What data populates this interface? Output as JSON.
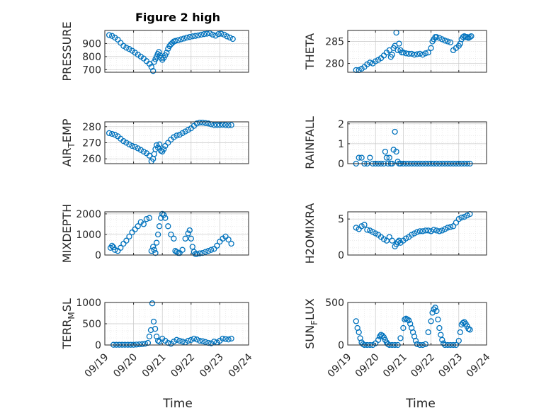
{
  "figure": {
    "title": "Figure 2 high",
    "xlabel": "Time",
    "xticks": [
      "09/19",
      "09/20",
      "09/21",
      "09/22",
      "09/23",
      "09/24"
    ],
    "marker_color": "#0072BD",
    "grid": "dotted minor and major"
  },
  "chart_data": [
    {
      "id": "pressure",
      "type": "scatter",
      "ylabel": "PRESSURE",
      "ylim": [
        680,
        1000
      ],
      "yticks": [
        700,
        800,
        900
      ],
      "xlim": [
        0,
        5
      ],
      "x": [
        0.15,
        0.25,
        0.35,
        0.45,
        0.55,
        0.65,
        0.75,
        0.85,
        0.95,
        1.05,
        1.15,
        1.25,
        1.35,
        1.45,
        1.55,
        1.62,
        1.68,
        1.72,
        1.76,
        1.8,
        1.84,
        1.88,
        1.92,
        1.96,
        2.0,
        2.05,
        2.1,
        2.15,
        2.2,
        2.25,
        2.3,
        2.35,
        2.4,
        2.45,
        2.55,
        2.65,
        2.75,
        2.85,
        2.95,
        3.05,
        3.15,
        3.25,
        3.35,
        3.45,
        3.55,
        3.65,
        3.75,
        3.85,
        3.95,
        4.05,
        4.15,
        4.25,
        4.35,
        4.45
      ],
      "y": [
        965,
        958,
        945,
        930,
        905,
        882,
        868,
        858,
        845,
        830,
        815,
        800,
        785,
        765,
        745,
        720,
        690,
        760,
        780,
        800,
        820,
        835,
        810,
        790,
        775,
        790,
        810,
        830,
        860,
        880,
        895,
        905,
        915,
        920,
        925,
        932,
        938,
        945,
        950,
        955,
        958,
        962,
        968,
        972,
        975,
        978,
        968,
        960,
        972,
        975,
        968,
        955,
        945,
        935
      ]
    },
    {
      "id": "theta",
      "type": "scatter",
      "ylabel": "THETA",
      "ylim": [
        278,
        287.5
      ],
      "yticks": [
        280,
        285
      ],
      "xlim": [
        0,
        5
      ],
      "x": [
        0.3,
        0.4,
        0.5,
        0.6,
        0.7,
        0.8,
        0.9,
        1.0,
        1.1,
        1.2,
        1.3,
        1.4,
        1.5,
        1.55,
        1.6,
        1.65,
        1.7,
        1.75,
        1.8,
        1.85,
        1.9,
        1.95,
        2.0,
        2.1,
        2.2,
        2.3,
        2.4,
        2.5,
        2.6,
        2.7,
        2.8,
        2.9,
        3.0,
        3.05,
        3.1,
        3.15,
        3.2,
        3.3,
        3.4,
        3.5,
        3.6,
        3.7,
        3.8,
        3.9,
        4.0,
        4.05,
        4.1,
        4.15,
        4.2,
        4.25,
        4.3,
        4.35,
        4.4,
        4.45
      ],
      "y": [
        278.5,
        278.5,
        278.8,
        279.2,
        279.8,
        280.2,
        280.0,
        280.5,
        280.8,
        281.2,
        281.8,
        282.5,
        283.0,
        281.5,
        282.0,
        283.5,
        284.0,
        287.0,
        283.0,
        284.5,
        283.0,
        282.5,
        282.5,
        282.3,
        282.2,
        282.2,
        282.0,
        282.1,
        282.2,
        282.0,
        282.3,
        282.5,
        283.5,
        285.0,
        285.5,
        286.0,
        286.0,
        285.8,
        285.5,
        285.2,
        285.0,
        284.8,
        283.0,
        283.5,
        284.0,
        284.5,
        285.5,
        286.0,
        286.2,
        286.0,
        286.0,
        285.8,
        286.0,
        286.2
      ]
    },
    {
      "id": "airtemp",
      "type": "scatter",
      "ylabel": "AIR",
      "ylabel_sub": "T",
      "ylabel_rest": "EMP",
      "ylim": [
        257,
        283
      ],
      "yticks": [
        260,
        270,
        280
      ],
      "xlim": [
        0,
        5
      ],
      "x": [
        0.15,
        0.25,
        0.35,
        0.45,
        0.55,
        0.65,
        0.75,
        0.85,
        0.95,
        1.05,
        1.15,
        1.25,
        1.35,
        1.45,
        1.55,
        1.62,
        1.68,
        1.72,
        1.76,
        1.8,
        1.85,
        1.9,
        1.95,
        2.0,
        2.05,
        2.1,
        2.2,
        2.3,
        2.4,
        2.5,
        2.6,
        2.7,
        2.8,
        2.9,
        3.0,
        3.1,
        3.2,
        3.3,
        3.4,
        3.5,
        3.6,
        3.7,
        3.8,
        3.9,
        4.0,
        4.1,
        4.2,
        4.3,
        4.4
      ],
      "y": [
        276,
        275.5,
        275,
        274,
        272.5,
        271,
        270,
        269,
        268,
        267.5,
        266.5,
        265.5,
        264.5,
        263.5,
        262,
        258.5,
        260,
        263,
        266,
        268.5,
        267,
        269,
        265,
        264.5,
        266,
        268,
        270,
        272,
        273.5,
        274.5,
        275,
        276,
        277,
        278,
        279,
        280.5,
        282,
        282.5,
        282.5,
        282.2,
        282,
        281.5,
        281,
        281,
        281,
        281.2,
        281,
        280.8,
        281
      ]
    },
    {
      "id": "rainfall",
      "type": "scatter",
      "ylabel": "RAINFALL",
      "ylim": [
        0,
        2.1
      ],
      "yticks": [
        0,
        1,
        2
      ],
      "xlim": [
        0,
        5
      ],
      "x": [
        0.3,
        0.4,
        0.5,
        0.6,
        0.7,
        0.8,
        0.9,
        1.0,
        1.1,
        1.2,
        1.3,
        1.35,
        1.4,
        1.45,
        1.5,
        1.55,
        1.6,
        1.65,
        1.7,
        1.75,
        1.8,
        1.85,
        1.9,
        2.0,
        2.1,
        2.2,
        2.3,
        2.4,
        2.5,
        2.6,
        2.7,
        2.8,
        2.9,
        3.0,
        3.1,
        3.2,
        3.3,
        3.4,
        3.5,
        3.6,
        3.7,
        3.8,
        3.9,
        4.0,
        4.1,
        4.2,
        4.3,
        4.4
      ],
      "y": [
        0,
        0.3,
        0.3,
        0,
        0,
        0.3,
        0,
        0,
        0,
        0,
        0,
        0.6,
        0.3,
        0,
        0.3,
        0,
        0,
        0.7,
        1.6,
        0.6,
        0.1,
        0,
        0,
        0,
        0,
        0,
        0,
        0,
        0,
        0,
        0,
        0,
        0,
        0,
        0,
        0,
        0,
        0,
        0,
        0,
        0,
        0,
        0,
        0,
        0,
        0,
        0,
        0
      ]
    },
    {
      "id": "mixdepth",
      "type": "scatter",
      "ylabel": "MIXDEPTH",
      "ylim": [
        0,
        2100
      ],
      "yticks": [
        0,
        1000,
        2000
      ],
      "xlim": [
        0,
        5
      ],
      "x": [
        0.2,
        0.25,
        0.3,
        0.35,
        0.45,
        0.55,
        0.65,
        0.75,
        0.85,
        0.95,
        1.05,
        1.15,
        1.25,
        1.35,
        1.45,
        1.55,
        1.62,
        1.68,
        1.72,
        1.76,
        1.8,
        1.85,
        1.9,
        1.95,
        2.0,
        2.05,
        2.1,
        2.2,
        2.3,
        2.4,
        2.45,
        2.5,
        2.55,
        2.6,
        2.7,
        2.8,
        2.9,
        2.95,
        3.0,
        3.05,
        3.1,
        3.15,
        3.2,
        3.3,
        3.4,
        3.5,
        3.6,
        3.7,
        3.8,
        3.9,
        4.0,
        4.1,
        4.2,
        4.3,
        4.4
      ],
      "y": [
        350,
        450,
        380,
        250,
        200,
        350,
        550,
        700,
        900,
        1100,
        1250,
        1400,
        1600,
        1500,
        1750,
        1800,
        200,
        400,
        250,
        100,
        600,
        1000,
        1400,
        1800,
        2000,
        1950,
        1800,
        1400,
        1000,
        800,
        200,
        150,
        100,
        100,
        250,
        800,
        1050,
        1200,
        800,
        400,
        150,
        50,
        50,
        80,
        100,
        150,
        200,
        250,
        300,
        450,
        650,
        800,
        900,
        750,
        550
      ]
    },
    {
      "id": "h2omixra",
      "type": "scatter",
      "ylabel": "H2OMIXRA",
      "ylim": [
        0,
        6
      ],
      "yticks": [
        0,
        5
      ],
      "xlim": [
        0,
        5
      ],
      "x": [
        0.3,
        0.4,
        0.5,
        0.6,
        0.7,
        0.8,
        0.9,
        1.0,
        1.1,
        1.2,
        1.3,
        1.4,
        1.5,
        1.6,
        1.7,
        1.75,
        1.8,
        1.85,
        1.9,
        2.0,
        2.1,
        2.2,
        2.3,
        2.4,
        2.5,
        2.6,
        2.7,
        2.8,
        2.9,
        3.0,
        3.1,
        3.2,
        3.3,
        3.4,
        3.5,
        3.6,
        3.7,
        3.8,
        3.9,
        4.0,
        4.1,
        4.2,
        4.3,
        4.4
      ],
      "y": [
        3.8,
        3.6,
        4.0,
        4.2,
        3.5,
        3.4,
        3.2,
        3.0,
        2.8,
        2.5,
        2.2,
        2.0,
        2.5,
        2.0,
        1.2,
        1.5,
        1.8,
        2.0,
        1.7,
        2.0,
        2.3,
        2.5,
        2.8,
        3.0,
        3.2,
        3.3,
        3.3,
        3.4,
        3.4,
        3.3,
        3.5,
        3.4,
        3.3,
        3.4,
        3.6,
        3.8,
        3.9,
        4.0,
        4.5,
        5.0,
        5.2,
        5.3,
        5.5,
        5.7
      ]
    },
    {
      "id": "terrmsl",
      "type": "scatter",
      "ylabel": "TERR",
      "ylabel_sub": "M",
      "ylabel_rest": "SL",
      "ylim": [
        0,
        1000
      ],
      "yticks": [
        0,
        500,
        1000
      ],
      "xlim": [
        0,
        5
      ],
      "x": [
        0.3,
        0.4,
        0.5,
        0.6,
        0.7,
        0.8,
        0.9,
        1.0,
        1.1,
        1.2,
        1.3,
        1.4,
        1.5,
        1.55,
        1.6,
        1.65,
        1.7,
        1.75,
        1.8,
        1.85,
        1.9,
        2.0,
        2.1,
        2.2,
        2.3,
        2.4,
        2.5,
        2.6,
        2.7,
        2.8,
        2.9,
        3.0,
        3.1,
        3.2,
        3.3,
        3.4,
        3.5,
        3.6,
        3.7,
        3.8,
        3.9,
        4.0,
        4.1,
        4.2,
        4.3,
        4.4
      ],
      "y": [
        5,
        5,
        5,
        5,
        5,
        5,
        5,
        5,
        10,
        15,
        20,
        30,
        50,
        200,
        350,
        980,
        550,
        380,
        200,
        100,
        80,
        150,
        100,
        50,
        30,
        80,
        120,
        100,
        80,
        60,
        100,
        120,
        150,
        130,
        100,
        90,
        70,
        50,
        40,
        80,
        60,
        100,
        150,
        140,
        130,
        150
      ]
    },
    {
      "id": "sunflux",
      "type": "scatter",
      "ylabel": "SUN",
      "ylabel_sub": "F",
      "ylabel_rest": "LUX",
      "ylim": [
        0,
        500
      ],
      "yticks": [
        0,
        500
      ],
      "xlim": [
        0,
        5
      ],
      "x": [
        0.3,
        0.35,
        0.4,
        0.45,
        0.5,
        0.55,
        0.6,
        0.7,
        0.8,
        0.9,
        1.0,
        1.1,
        1.15,
        1.2,
        1.25,
        1.3,
        1.35,
        1.4,
        1.45,
        1.5,
        1.6,
        1.7,
        1.8,
        1.9,
        2.0,
        2.05,
        2.1,
        2.15,
        2.2,
        2.25,
        2.3,
        2.35,
        2.4,
        2.45,
        2.5,
        2.6,
        2.7,
        2.8,
        2.9,
        3.0,
        3.05,
        3.1,
        3.15,
        3.2,
        3.25,
        3.3,
        3.35,
        3.4,
        3.45,
        3.5,
        3.6,
        3.7,
        3.8,
        3.9,
        4.0,
        4.05,
        4.1,
        4.15,
        4.2,
        4.25,
        4.3,
        4.35,
        4.4
      ],
      "y": [
        280,
        200,
        150,
        80,
        30,
        10,
        0,
        0,
        0,
        0,
        20,
        60,
        100,
        120,
        110,
        90,
        60,
        30,
        10,
        0,
        0,
        0,
        0,
        80,
        200,
        300,
        310,
        300,
        290,
        250,
        200,
        150,
        100,
        50,
        10,
        0,
        0,
        10,
        150,
        280,
        380,
        420,
        440,
        400,
        300,
        200,
        120,
        60,
        20,
        0,
        0,
        0,
        0,
        0,
        50,
        150,
        240,
        260,
        270,
        250,
        220,
        190,
        180
      ]
    }
  ]
}
